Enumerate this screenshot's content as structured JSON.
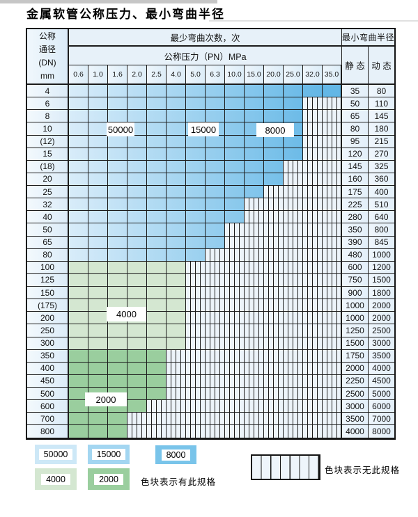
{
  "page": {
    "title": "金属软管公称压力、最小弯曲半径"
  },
  "table": {
    "corner_header": {
      "lines": [
        "公称",
        "通径",
        "(DN)",
        "mm"
      ]
    },
    "bend_cycles_header": "最少弯曲次数，次",
    "radius_header": "最小弯曲半径",
    "pressure_header": "公称压力（PN）MPa",
    "pressure_columns": [
      "0.6",
      "1.0",
      "1.6",
      "2.0",
      "2.5",
      "4.0",
      "5.0",
      "6.3",
      "10.0",
      "15.0",
      "20.0",
      "25.0",
      "32.0",
      "35.0"
    ],
    "static_header": "静 态",
    "dynamic_header": "动 态",
    "rows": [
      {
        "dn": "4",
        "cols": 14,
        "zone": "blue",
        "st": "35",
        "dy": "80"
      },
      {
        "dn": "6",
        "cols": 12,
        "zone": "blue",
        "st": "50",
        "dy": "110"
      },
      {
        "dn": "8",
        "cols": 12,
        "zone": "blue",
        "st": "65",
        "dy": "145"
      },
      {
        "dn": "10",
        "cols": 12,
        "zone": "blue",
        "st": "80",
        "dy": "180"
      },
      {
        "dn": "(12)",
        "cols": 12,
        "zone": "blue",
        "st": "95",
        "dy": "215"
      },
      {
        "dn": "15",
        "cols": 12,
        "zone": "blue",
        "st": "120",
        "dy": "270"
      },
      {
        "dn": "(18)",
        "cols": 11,
        "zone": "blue",
        "st": "145",
        "dy": "325"
      },
      {
        "dn": "20",
        "cols": 11,
        "zone": "blue",
        "st": "160",
        "dy": "360"
      },
      {
        "dn": "25",
        "cols": 10,
        "zone": "blue",
        "st": "175",
        "dy": "400"
      },
      {
        "dn": "32",
        "cols": 9,
        "zone": "blue",
        "st": "225",
        "dy": "510"
      },
      {
        "dn": "40",
        "cols": 9,
        "zone": "blue",
        "st": "280",
        "dy": "640"
      },
      {
        "dn": "50",
        "cols": 8,
        "zone": "blue",
        "st": "350",
        "dy": "800"
      },
      {
        "dn": "65",
        "cols": 8,
        "zone": "blue",
        "st": "390",
        "dy": "845"
      },
      {
        "dn": "80",
        "cols": 7,
        "zone": "blue",
        "st": "480",
        "dy": "1000"
      },
      {
        "dn": "100",
        "cols": 6,
        "zone": "green4000",
        "st": "600",
        "dy": "1200"
      },
      {
        "dn": "125",
        "cols": 6,
        "zone": "green4000",
        "st": "750",
        "dy": "1500"
      },
      {
        "dn": "150",
        "cols": 6,
        "zone": "green4000",
        "st": "900",
        "dy": "1800"
      },
      {
        "dn": "(175)",
        "cols": 6,
        "zone": "green4000",
        "st": "1000",
        "dy": "2000"
      },
      {
        "dn": "200",
        "cols": 6,
        "zone": "green4000",
        "st": "1000",
        "dy": "2000"
      },
      {
        "dn": "250",
        "cols": 6,
        "zone": "green4000",
        "st": "1250",
        "dy": "2500"
      },
      {
        "dn": "300",
        "cols": 6,
        "zone": "green4000",
        "st": "1500",
        "dy": "3000"
      },
      {
        "dn": "350",
        "cols": 5,
        "zone": "green2000",
        "st": "1750",
        "dy": "3500"
      },
      {
        "dn": "400",
        "cols": 5,
        "zone": "green2000",
        "st": "2000",
        "dy": "4000"
      },
      {
        "dn": "450",
        "cols": 5,
        "zone": "green2000",
        "st": "2250",
        "dy": "4500"
      },
      {
        "dn": "500",
        "cols": 5,
        "zone": "green2000",
        "st": "2500",
        "dy": "5000"
      },
      {
        "dn": "600",
        "cols": 4,
        "zone": "green2000",
        "st": "3000",
        "dy": "6000"
      },
      {
        "dn": "700",
        "cols": 3,
        "zone": "green2000",
        "st": "3500",
        "dy": "7000"
      },
      {
        "dn": "800",
        "cols": 3,
        "zone": "green2000",
        "st": "4000",
        "dy": "8000"
      }
    ]
  },
  "cycle_labels": [
    {
      "text": "50000"
    },
    {
      "text": "15000"
    },
    {
      "text": "8000"
    },
    {
      "text": "4000"
    },
    {
      "text": "2000"
    }
  ],
  "legend": {
    "swatches": [
      {
        "label": "50000",
        "color": "#cde8f7"
      },
      {
        "label": "15000",
        "color": "#a3d6f1"
      },
      {
        "label": "8000",
        "color": "#79c4ea"
      },
      {
        "label": "4000",
        "color": "#d4e7d1"
      },
      {
        "label": "2000",
        "color": "#9ace9e"
      }
    ],
    "available_note": "色块表示有此规格",
    "unavailable_note": "色块表示无此规格"
  },
  "colors": {
    "blue_light": "#d8ecf9",
    "blue_dark": "#63b7e6",
    "green_4000": "#d4e7d1",
    "green_2000": "#9ace9e",
    "hatch_bg": "#edf4fa",
    "grid_line": "#1b1b1b"
  }
}
